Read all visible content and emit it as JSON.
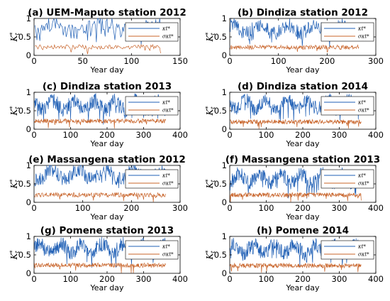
{
  "chart_data": [
    {
      "type": "line",
      "title": "(a) UEM-Maputo station 2012",
      "xlabel": "Year day",
      "ylabel": "K_t^*",
      "xlim": [
        0,
        150
      ],
      "ylim": [
        0,
        1
      ],
      "xticks": [
        "0",
        "50",
        "100",
        "150"
      ],
      "yticks": [
        "0",
        "0.5",
        "1"
      ],
      "legend_position": "right",
      "grid": false,
      "series": [
        {
          "name": "κt*",
          "color": "#1f5fb5",
          "x_range": [
            1,
            130
          ],
          "level": 0.75,
          "amplitude": 0.2
        },
        {
          "name": "σκt*",
          "color": "#c8642a",
          "x_range": [
            1,
            130
          ],
          "level": 0.23,
          "amplitude": 0.06
        }
      ]
    },
    {
      "type": "line",
      "title": "(b) Dindiza station 2012",
      "xlabel": "Year day",
      "ylabel": "K_t^*",
      "xlim": [
        0,
        300
      ],
      "ylim": [
        0,
        1
      ],
      "xticks": [
        "0",
        "100",
        "200",
        "300"
      ],
      "yticks": [
        "0",
        "0.5",
        "1"
      ],
      "legend_position": "right",
      "grid": false,
      "series": [
        {
          "name": "κt*",
          "color": "#1f5fb5",
          "x_range": [
            1,
            265
          ],
          "level": 0.72,
          "amplitude": 0.2
        },
        {
          "name": "σκt*",
          "color": "#c8642a",
          "x_range": [
            1,
            265
          ],
          "level": 0.22,
          "amplitude": 0.06
        }
      ]
    },
    {
      "type": "line",
      "title": "(c) Dindiza station 2013",
      "xlabel": "Year day",
      "ylabel": "K_t^*",
      "xlim": [
        0,
        400
      ],
      "ylim": [
        0,
        1
      ],
      "xticks": [
        "0",
        "100",
        "200",
        "300",
        "400"
      ],
      "yticks": [
        "0",
        "0.5",
        "1"
      ],
      "legend_position": "right",
      "grid": false,
      "series": [
        {
          "name": "κt*",
          "color": "#1f5fb5",
          "x_range": [
            1,
            360
          ],
          "level": 0.65,
          "amplitude": 0.2
        },
        {
          "name": "σκt*",
          "color": "#c8642a",
          "x_range": [
            1,
            360
          ],
          "level": 0.22,
          "amplitude": 0.06
        }
      ]
    },
    {
      "type": "line",
      "title": "(d) Dindiza station 2014",
      "xlabel": "Year day",
      "ylabel": "K_t^*",
      "xlim": [
        0,
        400
      ],
      "ylim": [
        0,
        1
      ],
      "xticks": [
        "0",
        "100",
        "200",
        "300",
        "400"
      ],
      "yticks": [
        "0",
        "0.5",
        "1"
      ],
      "legend_position": "right",
      "grid": false,
      "series": [
        {
          "name": "κt*",
          "color": "#1f5fb5",
          "x_range": [
            1,
            360
          ],
          "level": 0.68,
          "amplitude": 0.18
        },
        {
          "name": "σκt*",
          "color": "#c8642a",
          "x_range": [
            1,
            360
          ],
          "level": 0.2,
          "amplitude": 0.06
        }
      ]
    },
    {
      "type": "line",
      "title": "(e) Massangena station 2012",
      "xlabel": "Year day",
      "ylabel": "K_t^*",
      "xlim": [
        0,
        300
      ],
      "ylim": [
        0,
        1
      ],
      "xticks": [
        "0",
        "100",
        "200",
        "300"
      ],
      "yticks": [
        "0",
        "0.5",
        "1"
      ],
      "legend_position": "right",
      "grid": false,
      "series": [
        {
          "name": "κt*",
          "color": "#1f5fb5",
          "x_range": [
            1,
            270
          ],
          "level": 0.75,
          "amplitude": 0.2
        },
        {
          "name": "σκt*",
          "color": "#c8642a",
          "x_range": [
            1,
            270
          ],
          "level": 0.2,
          "amplitude": 0.06
        }
      ]
    },
    {
      "type": "line",
      "title": "(f) Massangena station 2013",
      "xlabel": "Year day",
      "ylabel": "K_t^*",
      "xlim": [
        0,
        400
      ],
      "ylim": [
        0,
        1
      ],
      "xticks": [
        "0",
        "100",
        "200",
        "300",
        "400"
      ],
      "yticks": [
        "0",
        "0.5",
        "1"
      ],
      "legend_position": "right",
      "grid": false,
      "series": [
        {
          "name": "κt*",
          "color": "#1f5fb5",
          "x_range": [
            1,
            360
          ],
          "level": 0.65,
          "amplitude": 0.2
        },
        {
          "name": "σκt*",
          "color": "#c8642a",
          "x_range": [
            1,
            360
          ],
          "level": 0.2,
          "amplitude": 0.06
        }
      ]
    },
    {
      "type": "line",
      "title": "(g) Pomene station 2013",
      "xlabel": "Year day",
      "ylabel": "K_t^*",
      "xlim": [
        0,
        400
      ],
      "ylim": [
        0,
        1
      ],
      "xticks": [
        "0",
        "100",
        "200",
        "300",
        "400"
      ],
      "yticks": [
        "0",
        "0.5",
        "1"
      ],
      "legend_position": "right",
      "grid": false,
      "series": [
        {
          "name": "κt*",
          "color": "#1f5fb5",
          "x_range": [
            1,
            360
          ],
          "level": 0.68,
          "amplitude": 0.2
        },
        {
          "name": "σκt*",
          "color": "#c8642a",
          "x_range": [
            1,
            360
          ],
          "level": 0.22,
          "amplitude": 0.06
        }
      ]
    },
    {
      "type": "line",
      "title": "(h) Pomene 2014",
      "xlabel": "Year day",
      "ylabel": "K_t^*",
      "xlim": [
        0,
        400
      ],
      "ylim": [
        0,
        1
      ],
      "xticks": [
        "0",
        "100",
        "200",
        "300",
        "400"
      ],
      "yticks": [
        "0",
        "0.5",
        "1"
      ],
      "legend_position": "right",
      "grid": false,
      "series": [
        {
          "name": "κt*",
          "color": "#1f5fb5",
          "x_range": [
            1,
            360
          ],
          "level": 0.66,
          "amplitude": 0.2
        },
        {
          "name": "σκt*",
          "color": "#c8642a",
          "x_range": [
            1,
            360
          ],
          "level": 0.21,
          "amplitude": 0.06
        }
      ]
    }
  ]
}
